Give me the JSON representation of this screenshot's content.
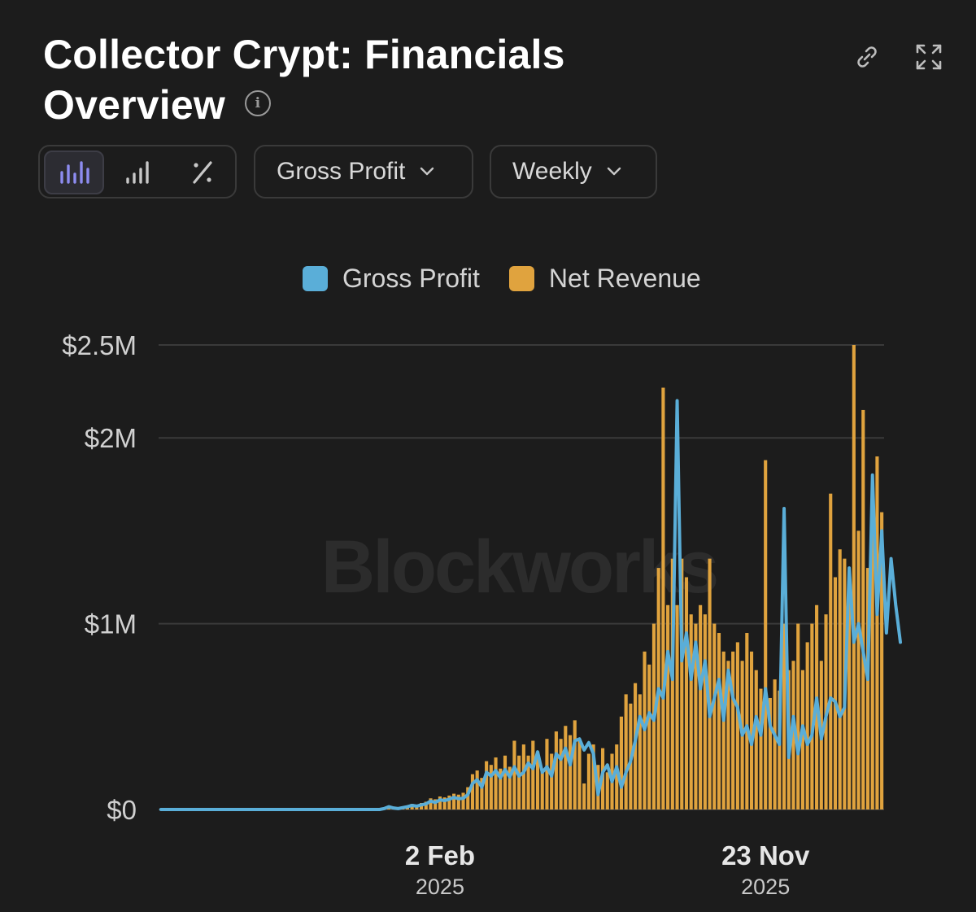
{
  "header": {
    "title": "Collector Crypt: Financials Overview",
    "info_icon": "info-icon",
    "link_icon": "link-icon",
    "expand_icon": "expand-icon"
  },
  "toolbar": {
    "chart_modes": [
      {
        "icon": "bar-chart-icon",
        "active": true
      },
      {
        "icon": "bar-signal-icon",
        "active": false
      },
      {
        "icon": "percent-icon",
        "active": false
      }
    ],
    "metric_dropdown": {
      "selected": "Gross Profit",
      "icon": "chevron-down-icon"
    },
    "period_dropdown": {
      "selected": "Weekly",
      "icon": "chevron-down-icon"
    }
  },
  "colors": {
    "background": "#1c1c1c",
    "gross_profit": "#5aaed8",
    "net_revenue": "#e0a33e",
    "accent": "#8d8cf0",
    "grid": "#3a3a3a"
  },
  "watermark": "Blockworks",
  "chart_data": {
    "type": "bar",
    "title": "",
    "xlabel": "",
    "ylabel": "",
    "ylim": [
      0,
      2500000
    ],
    "yticks": [
      {
        "value": 0,
        "label": "$0"
      },
      {
        "value": 1000000,
        "label": "$1M"
      },
      {
        "value": 2000000,
        "label": "$2M"
      },
      {
        "value": 2500000,
        "label": "$2.5M"
      }
    ],
    "xticks": [
      {
        "index": 60,
        "label": "2 Feb",
        "sublabel": "2025"
      },
      {
        "index": 130,
        "label": "23 Nov",
        "sublabel": "2025"
      }
    ],
    "grid": true,
    "legend_position": "top-center",
    "series": [
      {
        "name": "Gross Profit",
        "render": "line",
        "values": [
          0,
          0,
          0,
          0,
          0,
          0,
          0,
          0,
          0,
          0,
          0,
          0,
          0,
          0,
          0,
          0,
          0,
          0,
          0,
          0,
          0,
          0,
          0,
          0,
          0,
          0,
          0,
          0,
          0,
          0,
          0,
          0,
          0,
          0,
          0,
          0,
          0,
          0,
          0,
          0,
          0,
          0,
          0,
          0,
          0,
          0,
          0,
          0,
          5000,
          15000,
          8000,
          5000,
          10000,
          15000,
          22000,
          18000,
          25000,
          30000,
          45000,
          38000,
          52000,
          48000,
          55000,
          65000,
          58000,
          60000,
          80000,
          140000,
          160000,
          120000,
          200000,
          180000,
          210000,
          170000,
          215000,
          175000,
          230000,
          180000,
          200000,
          250000,
          220000,
          310000,
          200000,
          230000,
          180000,
          300000,
          270000,
          330000,
          240000,
          370000,
          380000,
          320000,
          360000,
          300000,
          80000,
          200000,
          240000,
          150000,
          230000,
          120000,
          200000,
          260000,
          370000,
          500000,
          430000,
          520000,
          480000,
          650000,
          600000,
          850000,
          700000,
          2200000,
          800000,
          950000,
          700000,
          900000,
          650000,
          800000,
          500000,
          600000,
          700000,
          480000,
          750000,
          600000,
          550000,
          400000,
          450000,
          350000,
          500000,
          400000,
          650000,
          450000,
          400000,
          350000,
          1620000,
          280000,
          500000,
          300000,
          450000,
          350000,
          400000,
          600000,
          380000,
          500000,
          600000,
          580000,
          500000,
          550000,
          1300000,
          900000,
          1000000,
          850000,
          700000,
          1800000,
          1050000,
          1500000,
          950000,
          1350000,
          1100000,
          900000
        ],
        "color": "#5aaed8"
      },
      {
        "name": "Net Revenue",
        "render": "bar",
        "values": [
          0,
          0,
          0,
          0,
          0,
          0,
          0,
          0,
          0,
          0,
          0,
          0,
          0,
          0,
          0,
          0,
          0,
          0,
          0,
          0,
          0,
          0,
          0,
          0,
          0,
          0,
          0,
          0,
          0,
          0,
          0,
          0,
          0,
          0,
          0,
          0,
          0,
          0,
          0,
          0,
          0,
          0,
          0,
          0,
          0,
          0,
          0,
          0,
          8000,
          20000,
          12000,
          8000,
          15000,
          20000,
          30000,
          25000,
          35000,
          42000,
          60000,
          55000,
          70000,
          65000,
          75000,
          85000,
          80000,
          90000,
          120000,
          190000,
          210000,
          170000,
          260000,
          240000,
          280000,
          220000,
          290000,
          230000,
          370000,
          290000,
          350000,
          290000,
          370000,
          310000,
          220000,
          380000,
          300000,
          420000,
          380000,
          450000,
          400000,
          480000,
          380000,
          140000,
          300000,
          350000,
          240000,
          330000,
          200000,
          300000,
          350000,
          500000,
          620000,
          570000,
          680000,
          620000,
          850000,
          780000,
          1000000,
          1300000,
          2270000,
          1100000,
          1350000,
          1100000,
          1350000,
          1250000,
          1050000,
          1000000,
          1100000,
          1050000,
          1350000,
          1000000,
          950000,
          850000,
          800000,
          850000,
          900000,
          800000,
          950000,
          850000,
          750000,
          650000,
          1880000,
          600000,
          700000,
          640000,
          1000000,
          750000,
          800000,
          1000000,
          750000,
          900000,
          1000000,
          1100000,
          800000,
          1050000,
          1700000,
          1250000,
          1400000,
          1350000,
          1250000,
          2500000,
          1500000,
          2150000,
          1300000,
          1600000,
          1900000,
          1600000
        ]
      }
    ],
    "net_revenue_color": "#e0a33e"
  }
}
